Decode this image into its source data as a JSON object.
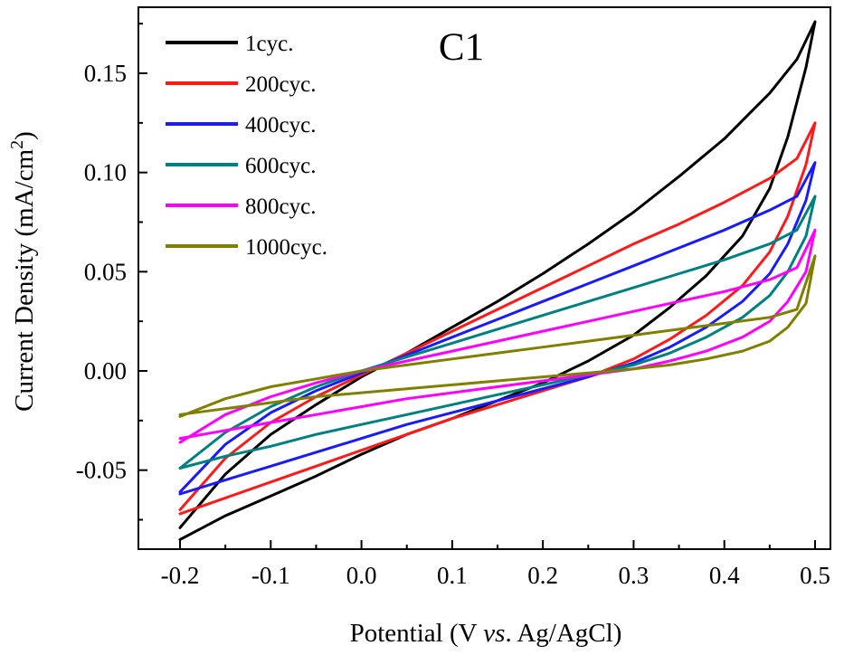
{
  "chart_data": {
    "type": "line",
    "annotation": "C1",
    "xlabel": "Potential (V vs. Ag/AgCl)",
    "xlabel_parts": {
      "before": "Potential (V ",
      "italic": "vs",
      "after": ". Ag/AgCl)"
    },
    "ylabel": "Current Density (mA/cm2)",
    "ylabel_parts": {
      "main": "Current Density (mA/cm",
      "superscript": "2",
      "closing": ")"
    },
    "xlim": [
      -0.2,
      0.5
    ],
    "ylim": [
      -0.085,
      0.175
    ],
    "x_ticks": [
      -0.2,
      -0.1,
      0.0,
      0.1,
      0.2,
      0.3,
      0.4,
      0.5
    ],
    "x_tick_labels": [
      "-0.2",
      "-0.1",
      "0.0",
      "0.1",
      "0.2",
      "0.3",
      "0.4",
      "0.5"
    ],
    "y_ticks": [
      -0.05,
      0.0,
      0.05,
      0.1,
      0.15
    ],
    "y_tick_labels": [
      "-0.05",
      "0.00",
      "0.05",
      "0.10",
      "0.15"
    ],
    "grid": false,
    "legend_position": "top-left",
    "series": [
      {
        "name": "1cyc.",
        "color": "#000000",
        "anodic": [
          [
            -0.2,
            -0.079
          ],
          [
            -0.15,
            -0.052
          ],
          [
            -0.1,
            -0.032
          ],
          [
            -0.05,
            -0.017
          ],
          [
            0.0,
            -0.003
          ],
          [
            0.05,
            0.009
          ],
          [
            0.1,
            0.022
          ],
          [
            0.15,
            0.035
          ],
          [
            0.2,
            0.049
          ],
          [
            0.25,
            0.064
          ],
          [
            0.3,
            0.08
          ],
          [
            0.35,
            0.098
          ],
          [
            0.4,
            0.117
          ],
          [
            0.45,
            0.14
          ],
          [
            0.48,
            0.157
          ],
          [
            0.5,
            0.176
          ]
        ],
        "cathodic": [
          [
            0.5,
            0.176
          ],
          [
            0.49,
            0.153
          ],
          [
            0.47,
            0.118
          ],
          [
            0.45,
            0.092
          ],
          [
            0.42,
            0.068
          ],
          [
            0.38,
            0.048
          ],
          [
            0.34,
            0.032
          ],
          [
            0.3,
            0.018
          ],
          [
            0.25,
            0.005
          ],
          [
            0.2,
            -0.006
          ],
          [
            0.15,
            -0.015
          ],
          [
            0.1,
            -0.024
          ],
          [
            0.05,
            -0.032
          ],
          [
            0.0,
            -0.042
          ],
          [
            -0.05,
            -0.053
          ],
          [
            -0.1,
            -0.063
          ],
          [
            -0.15,
            -0.073
          ],
          [
            -0.2,
            -0.085
          ]
        ]
      },
      {
        "name": "200cyc.",
        "color": "#ff1a1a",
        "anodic": [
          [
            -0.2,
            -0.07
          ],
          [
            -0.15,
            -0.044
          ],
          [
            -0.1,
            -0.026
          ],
          [
            -0.05,
            -0.013
          ],
          [
            0.0,
            -0.002
          ],
          [
            0.05,
            0.009
          ],
          [
            0.1,
            0.02
          ],
          [
            0.15,
            0.031
          ],
          [
            0.2,
            0.042
          ],
          [
            0.25,
            0.053
          ],
          [
            0.3,
            0.064
          ],
          [
            0.35,
            0.074
          ],
          [
            0.4,
            0.085
          ],
          [
            0.45,
            0.097
          ],
          [
            0.48,
            0.107
          ],
          [
            0.5,
            0.125
          ]
        ],
        "cathodic": [
          [
            0.5,
            0.125
          ],
          [
            0.49,
            0.104
          ],
          [
            0.47,
            0.078
          ],
          [
            0.45,
            0.06
          ],
          [
            0.42,
            0.043
          ],
          [
            0.38,
            0.028
          ],
          [
            0.34,
            0.016
          ],
          [
            0.3,
            0.006
          ],
          [
            0.25,
            -0.003
          ],
          [
            0.2,
            -0.01
          ],
          [
            0.15,
            -0.017
          ],
          [
            0.1,
            -0.024
          ],
          [
            0.05,
            -0.032
          ],
          [
            0.0,
            -0.04
          ],
          [
            -0.05,
            -0.048
          ],
          [
            -0.1,
            -0.056
          ],
          [
            -0.15,
            -0.064
          ],
          [
            -0.2,
            -0.072
          ]
        ]
      },
      {
        "name": "400cyc.",
        "color": "#1a1aff",
        "anodic": [
          [
            -0.2,
            -0.061
          ],
          [
            -0.15,
            -0.037
          ],
          [
            -0.1,
            -0.021
          ],
          [
            -0.05,
            -0.01
          ],
          [
            0.0,
            -0.001
          ],
          [
            0.05,
            0.008
          ],
          [
            0.1,
            0.017
          ],
          [
            0.15,
            0.026
          ],
          [
            0.2,
            0.035
          ],
          [
            0.25,
            0.044
          ],
          [
            0.3,
            0.053
          ],
          [
            0.35,
            0.062
          ],
          [
            0.4,
            0.071
          ],
          [
            0.45,
            0.081
          ],
          [
            0.48,
            0.088
          ],
          [
            0.5,
            0.105
          ]
        ],
        "cathodic": [
          [
            0.5,
            0.105
          ],
          [
            0.49,
            0.086
          ],
          [
            0.47,
            0.064
          ],
          [
            0.45,
            0.049
          ],
          [
            0.42,
            0.035
          ],
          [
            0.38,
            0.022
          ],
          [
            0.34,
            0.012
          ],
          [
            0.3,
            0.004
          ],
          [
            0.25,
            -0.003
          ],
          [
            0.2,
            -0.009
          ],
          [
            0.15,
            -0.015
          ],
          [
            0.1,
            -0.021
          ],
          [
            0.05,
            -0.027
          ],
          [
            0.0,
            -0.034
          ],
          [
            -0.05,
            -0.041
          ],
          [
            -0.1,
            -0.048
          ],
          [
            -0.15,
            -0.055
          ],
          [
            -0.2,
            -0.062
          ]
        ]
      },
      {
        "name": "600cyc.",
        "color": "#008080",
        "anodic": [
          [
            -0.2,
            -0.049
          ],
          [
            -0.15,
            -0.031
          ],
          [
            -0.1,
            -0.018
          ],
          [
            -0.05,
            -0.008
          ],
          [
            0.0,
            0.0
          ],
          [
            0.05,
            0.007
          ],
          [
            0.1,
            0.014
          ],
          [
            0.15,
            0.021
          ],
          [
            0.2,
            0.028
          ],
          [
            0.25,
            0.035
          ],
          [
            0.3,
            0.042
          ],
          [
            0.35,
            0.049
          ],
          [
            0.4,
            0.056
          ],
          [
            0.45,
            0.064
          ],
          [
            0.48,
            0.071
          ],
          [
            0.5,
            0.088
          ]
        ],
        "cathodic": [
          [
            0.5,
            0.088
          ],
          [
            0.49,
            0.068
          ],
          [
            0.47,
            0.05
          ],
          [
            0.45,
            0.038
          ],
          [
            0.42,
            0.027
          ],
          [
            0.38,
            0.017
          ],
          [
            0.34,
            0.009
          ],
          [
            0.3,
            0.003
          ],
          [
            0.25,
            -0.002
          ],
          [
            0.2,
            -0.007
          ],
          [
            0.15,
            -0.012
          ],
          [
            0.1,
            -0.017
          ],
          [
            0.05,
            -0.022
          ],
          [
            0.0,
            -0.027
          ],
          [
            -0.05,
            -0.032
          ],
          [
            -0.1,
            -0.038
          ],
          [
            -0.15,
            -0.043
          ],
          [
            -0.2,
            -0.049
          ]
        ]
      },
      {
        "name": "800cyc.",
        "color": "#ff00ff",
        "anodic": [
          [
            -0.2,
            -0.036
          ],
          [
            -0.15,
            -0.022
          ],
          [
            -0.1,
            -0.013
          ],
          [
            -0.05,
            -0.006
          ],
          [
            0.0,
            0.0
          ],
          [
            0.05,
            0.005
          ],
          [
            0.1,
            0.01
          ],
          [
            0.15,
            0.015
          ],
          [
            0.2,
            0.02
          ],
          [
            0.25,
            0.025
          ],
          [
            0.3,
            0.03
          ],
          [
            0.35,
            0.035
          ],
          [
            0.4,
            0.04
          ],
          [
            0.45,
            0.046
          ],
          [
            0.48,
            0.052
          ],
          [
            0.5,
            0.071
          ]
        ],
        "cathodic": [
          [
            0.5,
            0.071
          ],
          [
            0.49,
            0.05
          ],
          [
            0.47,
            0.035
          ],
          [
            0.45,
            0.025
          ],
          [
            0.42,
            0.017
          ],
          [
            0.38,
            0.01
          ],
          [
            0.34,
            0.005
          ],
          [
            0.3,
            0.001
          ],
          [
            0.25,
            -0.002
          ],
          [
            0.2,
            -0.005
          ],
          [
            0.15,
            -0.008
          ],
          [
            0.1,
            -0.011
          ],
          [
            0.05,
            -0.014
          ],
          [
            0.0,
            -0.018
          ],
          [
            -0.05,
            -0.022
          ],
          [
            -0.1,
            -0.026
          ],
          [
            -0.15,
            -0.03
          ],
          [
            -0.2,
            -0.034
          ]
        ]
      },
      {
        "name": "1000cyc.",
        "color": "#808000",
        "anodic": [
          [
            -0.2,
            -0.023
          ],
          [
            -0.15,
            -0.014
          ],
          [
            -0.1,
            -0.008
          ],
          [
            -0.05,
            -0.004
          ],
          [
            0.0,
            0.0
          ],
          [
            0.05,
            0.003
          ],
          [
            0.1,
            0.006
          ],
          [
            0.15,
            0.009
          ],
          [
            0.2,
            0.012
          ],
          [
            0.25,
            0.015
          ],
          [
            0.3,
            0.018
          ],
          [
            0.35,
            0.021
          ],
          [
            0.4,
            0.024
          ],
          [
            0.45,
            0.027
          ],
          [
            0.48,
            0.031
          ],
          [
            0.5,
            0.058
          ]
        ],
        "cathodic": [
          [
            0.5,
            0.058
          ],
          [
            0.49,
            0.034
          ],
          [
            0.47,
            0.022
          ],
          [
            0.45,
            0.015
          ],
          [
            0.42,
            0.01
          ],
          [
            0.38,
            0.006
          ],
          [
            0.34,
            0.003
          ],
          [
            0.3,
            0.001
          ],
          [
            0.25,
            -0.001
          ],
          [
            0.2,
            -0.003
          ],
          [
            0.15,
            -0.005
          ],
          [
            0.1,
            -0.007
          ],
          [
            0.05,
            -0.009
          ],
          [
            0.0,
            -0.011
          ],
          [
            -0.05,
            -0.013
          ],
          [
            -0.1,
            -0.016
          ],
          [
            -0.15,
            -0.019
          ],
          [
            -0.2,
            -0.022
          ]
        ]
      }
    ]
  }
}
